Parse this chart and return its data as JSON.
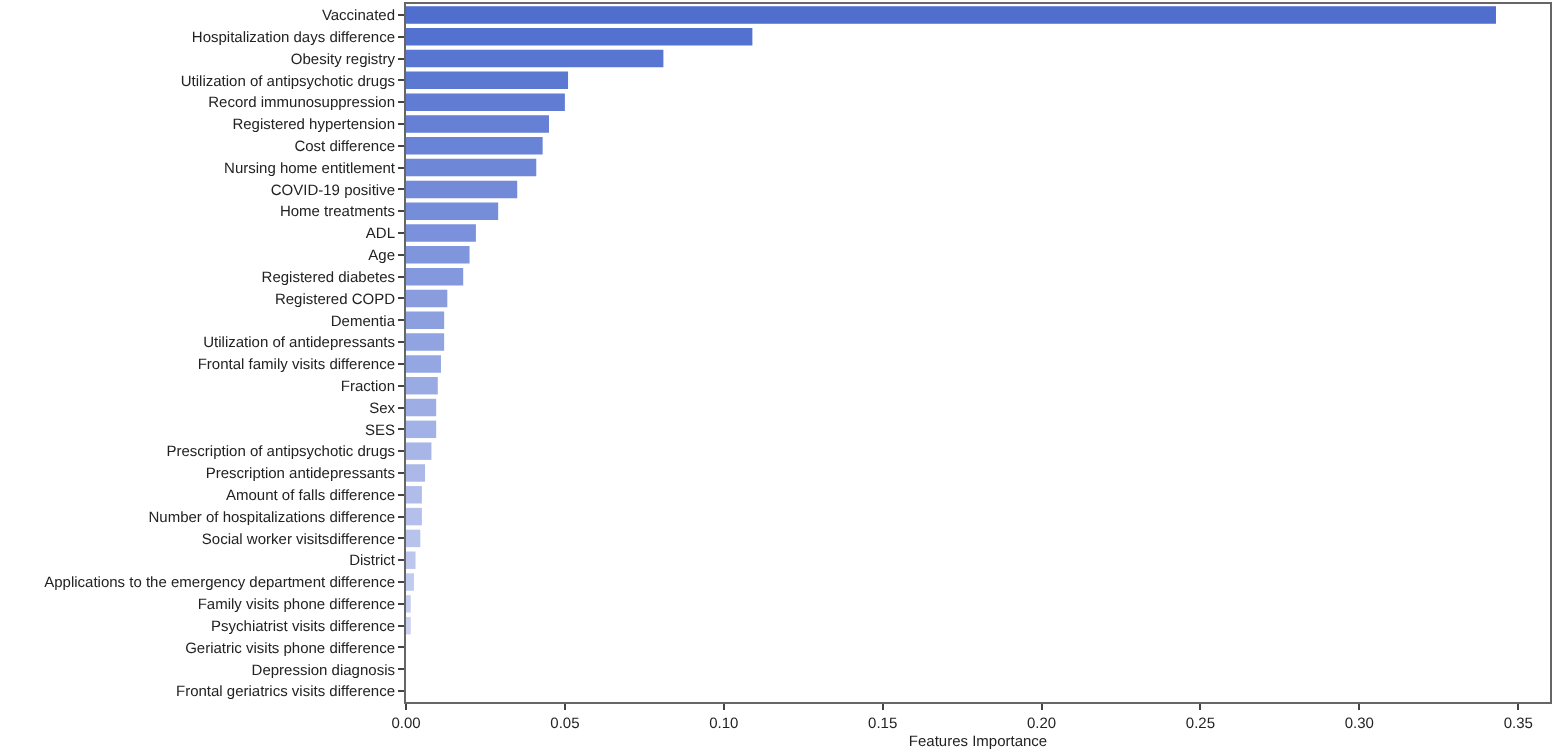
{
  "chart_data": {
    "type": "bar",
    "orientation": "horizontal",
    "xlabel": "Features Importance",
    "categories": [
      "Vaccinated",
      "Hospitalization days difference",
      "Obesity registry",
      "Utilization of antipsychotic drugs",
      "Record immunosuppression",
      "Registered hypertension",
      "Cost difference",
      "Nursing home entitlement",
      "COVID-19 positive",
      "Home treatments",
      "ADL",
      "Age",
      "Registered diabetes",
      "Registered COPD",
      "Dementia",
      "Utilization of antidepressants",
      "Frontal family visits difference",
      "Fraction",
      "Sex",
      "SES",
      "Prescription of antipsychotic drugs",
      "Prescription antidepressants",
      "Amount of falls difference",
      "Number of hospitalizations difference",
      "Social worker visitsdifference",
      "District",
      "Applications to the emergency department difference",
      "Family visits phone difference",
      "Psychiatrist visits difference",
      "Geriatric visits phone difference",
      "Depression diagnosis",
      "Frontal geriatrics visits difference"
    ],
    "values": [
      0.343,
      0.109,
      0.081,
      0.051,
      0.05,
      0.045,
      0.043,
      0.041,
      0.035,
      0.029,
      0.022,
      0.02,
      0.018,
      0.013,
      0.012,
      0.012,
      0.011,
      0.01,
      0.0095,
      0.0095,
      0.008,
      0.006,
      0.005,
      0.005,
      0.0045,
      0.003,
      0.0025,
      0.0015,
      0.0015,
      0,
      0,
      0
    ],
    "colors": [
      "#4f6ece",
      "#5372cf",
      "#5875d1",
      "#5c79d2",
      "#617cd3",
      "#6580d4",
      "#6983d6",
      "#6e87d7",
      "#728ad8",
      "#768ed9",
      "#7b91db",
      "#7f95dc",
      "#8499dd",
      "#889cde",
      "#8ca0e0",
      "#91a3e1",
      "#95a7e2",
      "#9aaae3",
      "#9eaee5",
      "#a2b1e6",
      "#a7b5e7",
      "#abb8e8",
      "#b0bcea",
      "#b4c0eb",
      "#b8c3ec",
      "#bdc7ed",
      "#c1caef",
      "#c6cef0",
      "#cad1f1",
      "#ced5f2",
      "#d3d8f4",
      "#d7dcf5"
    ],
    "xlim": [
      0,
      0.36
    ],
    "xticks": [
      {
        "value": 0,
        "label": "0.00"
      },
      {
        "value": 0.05,
        "label": "0.05"
      },
      {
        "value": 0.1,
        "label": "0.10"
      },
      {
        "value": 0.15,
        "label": "0.15"
      },
      {
        "value": 0.2,
        "label": "0.20"
      },
      {
        "value": 0.25,
        "label": "0.25"
      },
      {
        "value": 0.3,
        "label": "0.30"
      },
      {
        "value": 0.35,
        "label": "0.35"
      }
    ]
  }
}
